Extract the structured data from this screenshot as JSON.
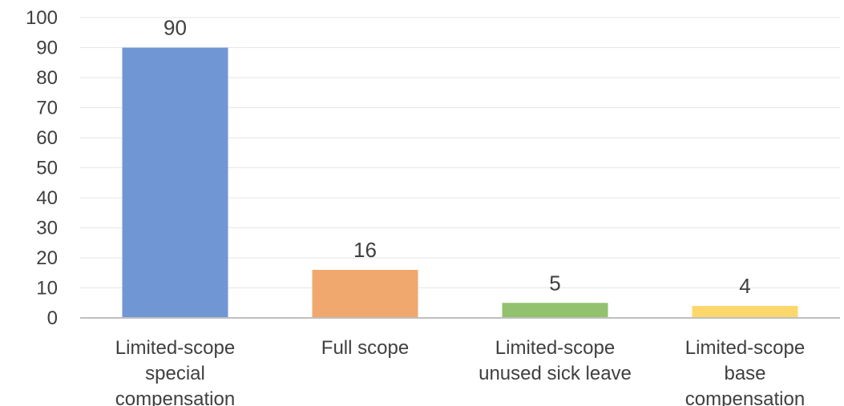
{
  "chart_data": {
    "type": "bar",
    "categories": [
      [
        "Limited-scope",
        "special",
        "compensation"
      ],
      [
        "Full scope"
      ],
      [
        "Limited-scope",
        "unused sick leave"
      ],
      [
        "Limited-scope",
        "base",
        "compensation"
      ]
    ],
    "values": [
      90,
      16,
      5,
      4
    ],
    "data_labels": [
      "90",
      "16",
      "5",
      "4"
    ],
    "colors": [
      "#7096d4",
      "#f0a86e",
      "#92c26e",
      "#fcd86c"
    ],
    "ylim": [
      0,
      100
    ],
    "yticks": [
      0,
      10,
      20,
      30,
      40,
      50,
      60,
      70,
      80,
      90,
      100
    ],
    "ytick_labels": [
      "0",
      "10",
      "20",
      "30",
      "40",
      "50",
      "60",
      "70",
      "80",
      "90",
      "100"
    ],
    "grid": true,
    "legend": "none",
    "title": "",
    "xlabel": "",
    "ylabel": ""
  }
}
